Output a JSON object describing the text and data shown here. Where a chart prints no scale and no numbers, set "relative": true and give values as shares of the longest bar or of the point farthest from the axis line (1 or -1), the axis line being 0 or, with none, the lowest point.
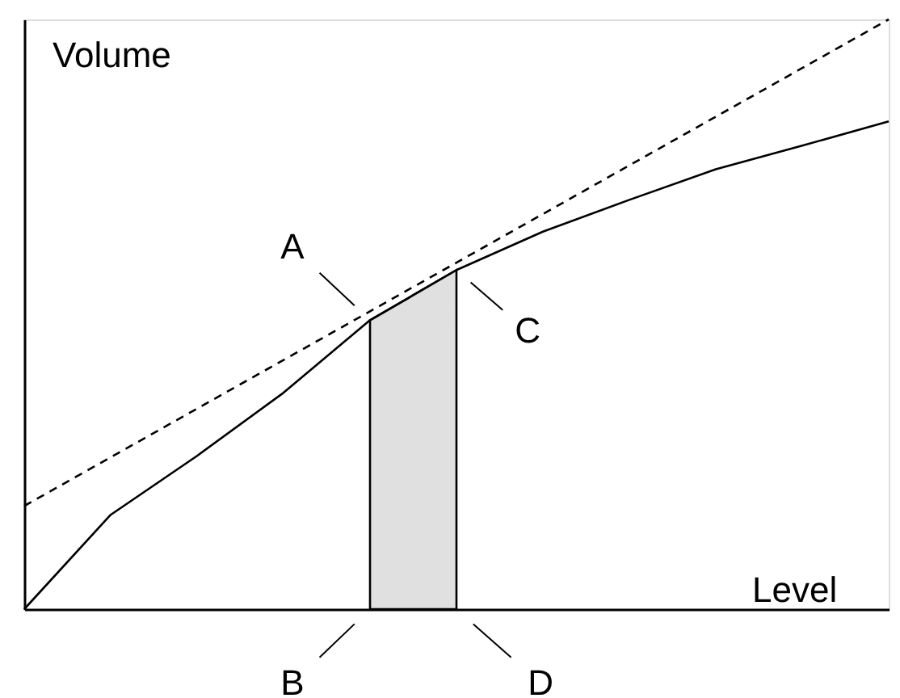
{
  "chart_data": {
    "type": "line",
    "relative": true,
    "xlabel": "Level",
    "ylabel": "Volume",
    "categories": [
      null,
      null,
      null,
      null,
      null,
      null,
      null,
      null,
      null,
      null,
      null
    ],
    "series": [
      {
        "color": "#000000",
        "line_style": "solid",
        "values": [
          0,
          0.16,
          0.26,
          0.367,
          0.49,
          0.575,
          0.64,
          0.694,
          0.746,
          0.786,
          0.827
        ]
      },
      {
        "color": "#000000",
        "line_style": "dashed",
        "values": [
          0.175,
          0.2575,
          0.34,
          0.4225,
          0.505,
          0.5875,
          0.67,
          0.7525,
          0.835,
          0.9175,
          1.0
        ]
      },
      {
        "type": "area",
        "color": "#e0e0e0",
        "values": [
          null,
          null,
          null,
          null,
          0.49,
          0.575,
          null,
          null,
          null,
          null,
          null
        ]
      }
    ],
    "annotations": [
      "A",
      "B",
      "C",
      "D"
    ]
  }
}
